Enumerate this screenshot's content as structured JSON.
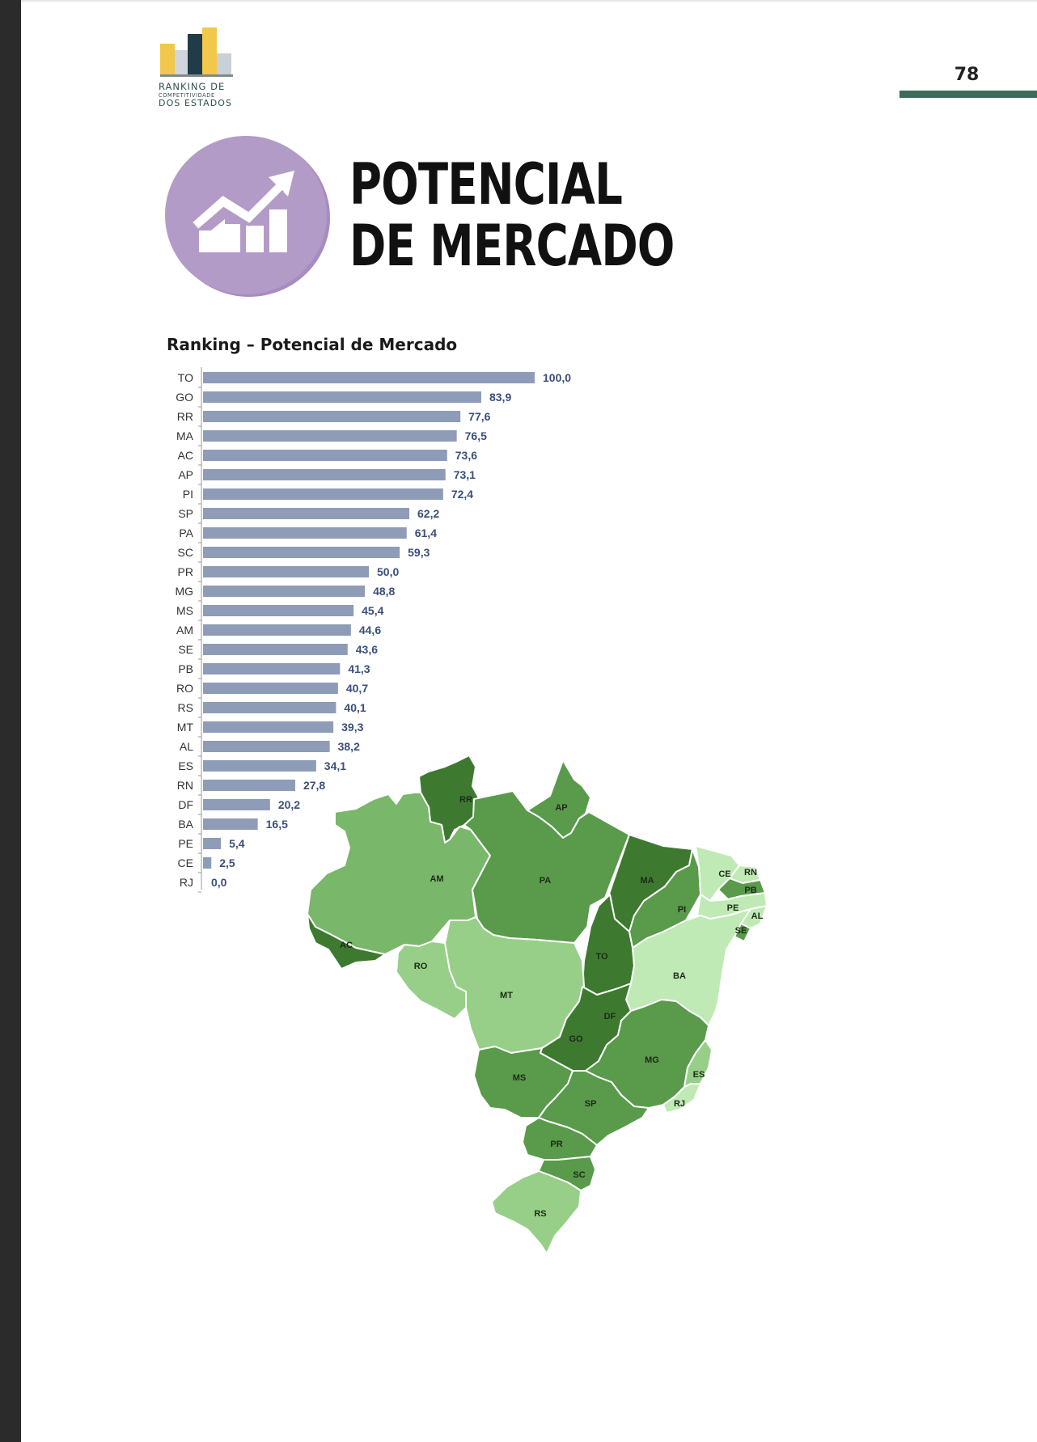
{
  "header": {
    "logo_line1": "RANKING DE",
    "logo_line2": "COMPETITIVIDADE",
    "logo_line3": "DOS ESTADOS",
    "page_number": "78"
  },
  "section": {
    "icon": "trend-chart-icon",
    "title_line1": "POTENCIAL",
    "title_line2": "DE MERCADO",
    "icon_color": "#b39bc8"
  },
  "chart_data": {
    "type": "bar",
    "orientation": "horizontal",
    "title": "Ranking – Potencial de Mercado",
    "categories": [
      "TO",
      "GO",
      "RR",
      "MA",
      "AC",
      "AP",
      "PI",
      "SP",
      "PA",
      "SC",
      "PR",
      "MG",
      "MS",
      "AM",
      "SE",
      "PB",
      "RO",
      "RS",
      "MT",
      "AL",
      "ES",
      "RN",
      "DF",
      "BA",
      "PE",
      "CE",
      "RJ"
    ],
    "values": [
      100.0,
      83.9,
      77.6,
      76.5,
      73.6,
      73.1,
      72.4,
      62.2,
      61.4,
      59.3,
      50.0,
      48.8,
      45.4,
      44.6,
      43.6,
      41.3,
      40.7,
      40.1,
      39.3,
      38.2,
      34.1,
      27.8,
      20.2,
      16.5,
      5.4,
      2.5,
      0.0
    ],
    "value_labels": [
      "100,0",
      "83,9",
      "77,6",
      "76,5",
      "73,6",
      "73,1",
      "72,4",
      "62,2",
      "61,4",
      "59,3",
      "50,0",
      "48,8",
      "45,4",
      "44,6",
      "43,6",
      "41,3",
      "40,7",
      "40,1",
      "39,3",
      "38,2",
      "34,1",
      "27,8",
      "20,2",
      "16,5",
      "5,4",
      "2,5",
      "0,0"
    ],
    "xlim": [
      0,
      100
    ],
    "grid": false,
    "legend": "none",
    "bar_color": "#8e9cb7",
    "label_color": "#3a4f7a"
  },
  "map": {
    "states": [
      "RR",
      "AP",
      "AM",
      "PA",
      "MA",
      "CE",
      "RN",
      "PB",
      "PE",
      "AL",
      "SE",
      "PI",
      "AC",
      "RO",
      "TO",
      "BA",
      "MT",
      "DF",
      "GO",
      "MG",
      "ES",
      "RJ",
      "MS",
      "SP",
      "PR",
      "SC",
      "RS"
    ],
    "colors": {
      "darkest": "#3d7a30",
      "dark": "#599a4b",
      "medium": "#79b76a",
      "light": "#97cf88",
      "lightest": "#bfeab5"
    }
  }
}
